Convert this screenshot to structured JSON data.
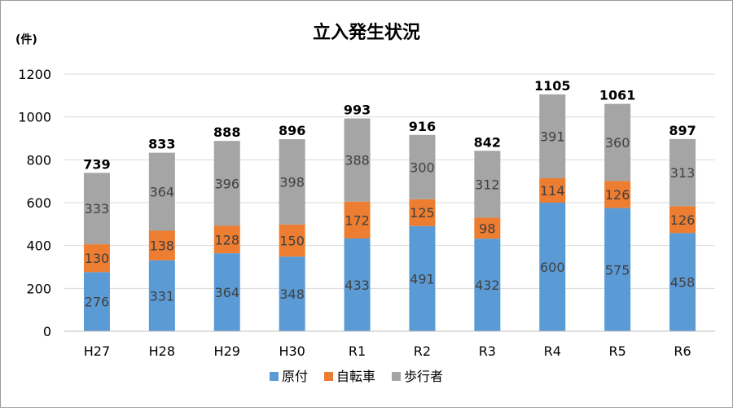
{
  "chart_data": {
    "type": "bar",
    "stacked": true,
    "title": "立入発生状況",
    "ylabel": "(件)",
    "xlabel": "",
    "ylim": [
      0,
      1200
    ],
    "yticks": [
      0,
      200,
      400,
      600,
      800,
      1000,
      1200
    ],
    "grid": true,
    "legend_position": "bottom",
    "categories": [
      "H27",
      "H28",
      "H29",
      "H30",
      "R1",
      "R2",
      "R3",
      "R4",
      "R5",
      "R6"
    ],
    "series": [
      {
        "name": "原付",
        "color": "#5b9bd5",
        "values": [
          276,
          331,
          364,
          348,
          433,
          491,
          432,
          600,
          575,
          458
        ]
      },
      {
        "name": "自転車",
        "color": "#ed7d31",
        "values": [
          130,
          138,
          128,
          150,
          172,
          125,
          98,
          114,
          126,
          126
        ]
      },
      {
        "name": "歩行者",
        "color": "#a5a5a5",
        "values": [
          333,
          364,
          396,
          398,
          388,
          300,
          312,
          391,
          360,
          313
        ]
      }
    ],
    "totals": [
      739,
      833,
      888,
      896,
      993,
      916,
      842,
      1105,
      1061,
      897
    ]
  }
}
